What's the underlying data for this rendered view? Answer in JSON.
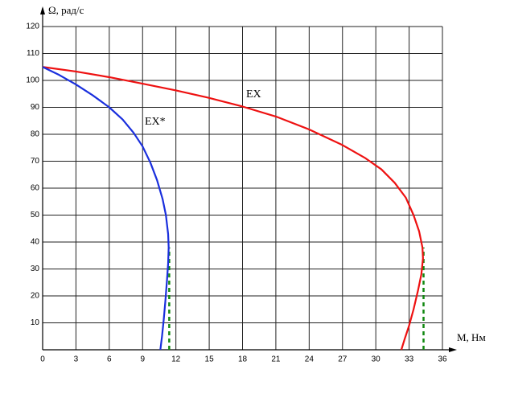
{
  "chart_data": {
    "type": "line",
    "x_label": "М, Нм",
    "y_label": "Ω, рад/с",
    "xlim": [
      0,
      36
    ],
    "ylim": [
      0,
      120
    ],
    "xticks": [
      0,
      3,
      6,
      9,
      12,
      15,
      18,
      21,
      24,
      27,
      30,
      33,
      36
    ],
    "yticks": [
      10,
      20,
      30,
      40,
      50,
      60,
      70,
      80,
      90,
      100,
      110,
      120
    ],
    "grid": true,
    "series": [
      {
        "name": "ЕХ",
        "color": "#ee1111",
        "x": [
          0,
          3,
          6,
          9,
          12,
          15,
          18,
          21,
          24,
          27,
          29,
          30.5,
          31.7,
          32.7,
          33.4,
          33.9,
          34.2,
          34.25,
          34.1,
          33.8,
          33.4,
          33,
          32.6,
          32.3
        ],
        "values": [
          105,
          103.3,
          101.2,
          98.8,
          96.3,
          93.5,
          90.3,
          86.6,
          81.8,
          76,
          71.3,
          67,
          62,
          56.5,
          50,
          44,
          38,
          34,
          28,
          22,
          15,
          9,
          4,
          0
        ]
      },
      {
        "name": "ЕХ*",
        "color": "#1a2fdd",
        "x": [
          0,
          1.5,
          3,
          4.5,
          6,
          7.2,
          8.2,
          9,
          9.7,
          10.3,
          10.8,
          11.1,
          11.3,
          11.35,
          11.3,
          11.2,
          11.05,
          10.9,
          10.75,
          10.6
        ],
        "values": [
          105,
          102,
          98.5,
          94.5,
          90,
          85.5,
          80.5,
          75.5,
          69.5,
          63,
          56,
          50,
          43,
          38,
          32,
          26,
          18,
          11,
          5,
          0
        ]
      }
    ],
    "reference_lines": [
      {
        "color": "#118811",
        "x": [
          11.4,
          11.4
        ],
        "values": [
          0,
          38
        ]
      },
      {
        "color": "#118811",
        "x": [
          34.3,
          34.3
        ],
        "values": [
          0,
          38
        ]
      }
    ]
  }
}
